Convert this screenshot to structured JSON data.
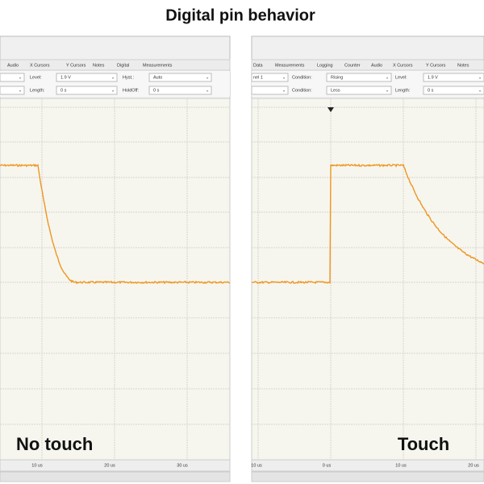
{
  "title": "Digital pin behavior",
  "panels": [
    {
      "label": "No touch",
      "menu": [
        "Audio",
        "X Cursors",
        "Y Cursors",
        "Notes",
        "Digital",
        "Measurements"
      ],
      "fields": [
        {
          "label": "Level:",
          "value": "1.9 V"
        },
        {
          "label": "Hyst.:",
          "value": "Auto"
        },
        {
          "label": "Length:",
          "value": "0 s"
        },
        {
          "label": "HoldOff:",
          "value": "0 s"
        }
      ],
      "x_labels": [
        "10 us",
        "20 us",
        "30 us"
      ]
    },
    {
      "label": "Touch",
      "menu": [
        "Data",
        "Measurements",
        "Logging",
        "Counter",
        "Audio",
        "X Cursors",
        "Y Cursors",
        "Notes"
      ],
      "channel": "nel 1",
      "fields": [
        {
          "label": "Condition:",
          "value": "Rising"
        },
        {
          "label": "Level:",
          "value": "1.9 V"
        },
        {
          "label": "Condition:",
          "value": "Less"
        },
        {
          "label": "Length:",
          "value": "0 s"
        }
      ],
      "x_labels": [
        "10 us",
        "0 us",
        "10 us",
        "20 us"
      ]
    }
  ]
}
